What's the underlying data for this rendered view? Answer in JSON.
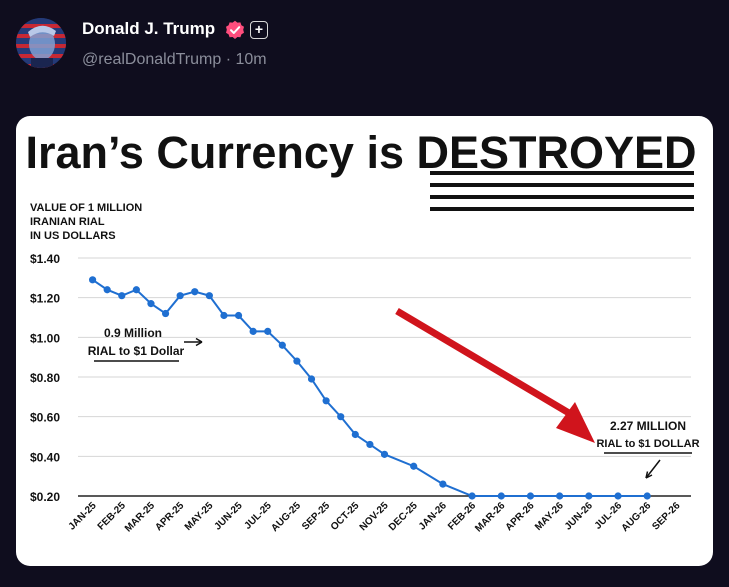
{
  "post": {
    "author_name": "Donald J. Trump",
    "handle": "@realDonaldTrump",
    "separator": "·",
    "time": "10m",
    "verified_color": "#ff4d7d",
    "plus_badge": "+"
  },
  "chart_data": {
    "type": "line",
    "title_prefix": "Iran’s Currency is ",
    "title_emphasis": "DESTROYED",
    "ylabel_lines": [
      "VALUE OF 1 MILLION",
      "IRANIAN RIAL",
      "IN US DOLLARS"
    ],
    "ylim": [
      0.2,
      1.4
    ],
    "yticks": [
      0.2,
      0.4,
      0.6,
      0.8,
      1.0,
      1.2,
      1.4
    ],
    "ytick_labels": [
      "$0.20",
      "$0.40",
      "$0.60",
      "$0.80",
      "$1.00",
      "$1.20",
      "$1.40"
    ],
    "categories": [
      "JAN-25",
      "FEB-25",
      "MAR-25",
      "APR-25",
      "MAY-25",
      "JUN-25",
      "JUL-25",
      "AUG-25",
      "SEP-25",
      "OCT-25",
      "NOV-25",
      "DEC-25",
      "JAN-26",
      "FEB-26",
      "MAR-26",
      "APR-26",
      "MAY-26",
      "JUN-26",
      "JUL-26",
      "AUG-26",
      "SEP-26"
    ],
    "series": [
      {
        "x": [
          0,
          0.5,
          1,
          1.5,
          2,
          2.5,
          3,
          3.5,
          4,
          4.5,
          5,
          5.5,
          6,
          6.5,
          7,
          7.5,
          8,
          8.5,
          9,
          9.5,
          10,
          11,
          12,
          13,
          14,
          15,
          16,
          17,
          18,
          19
        ],
        "values": [
          1.29,
          1.24,
          1.21,
          1.24,
          1.17,
          1.12,
          1.21,
          1.23,
          1.21,
          1.11,
          1.11,
          1.03,
          1.03,
          0.96,
          0.88,
          0.79,
          0.68,
          0.6,
          0.51,
          0.46,
          0.41,
          0.35,
          0.26,
          0.2,
          0.2,
          0.2,
          0.2,
          0.2,
          0.2,
          0.2
        ],
        "color": "#1f6fd1"
      }
    ],
    "annotations": [
      {
        "lines": [
          "0.9 Million",
          "RIAL to $1 Dollar"
        ]
      },
      {
        "lines": [
          "2.27 MILLION",
          "RIAL to $1 DOLLAR"
        ]
      }
    ],
    "trend_arrow_color": "#d0141c",
    "grid": true,
    "legend": "none"
  }
}
